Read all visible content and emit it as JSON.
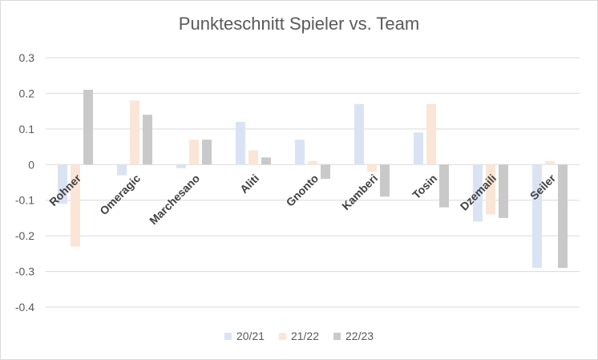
{
  "chart_data": {
    "type": "bar",
    "title": "Punkteschnitt Spieler vs. Team",
    "categories": [
      "Rohner",
      "Omeragic",
      "Marchesano",
      "Aliti",
      "Gnonto",
      "Kamberi",
      "Tosin",
      "Dzemaili",
      "Seiler"
    ],
    "series": [
      {
        "name": "20/21",
        "color": "#dae3f3",
        "values": [
          -0.11,
          -0.03,
          -0.01,
          0.12,
          0.07,
          0.17,
          0.09,
          -0.16,
          -0.29
        ]
      },
      {
        "name": "21/22",
        "color": "#fbe5d6",
        "values": [
          -0.23,
          0.18,
          0.07,
          0.04,
          0.01,
          -0.02,
          0.17,
          -0.14,
          0.01
        ]
      },
      {
        "name": "22/23",
        "color": "#c9c9c9",
        "values": [
          0.21,
          0.14,
          0.07,
          0.02,
          -0.04,
          -0.09,
          -0.12,
          -0.15,
          -0.29
        ]
      }
    ],
    "yticks": [
      "0.3",
      "0.2",
      "0.1",
      "0",
      "-0.1",
      "-0.2",
      "-0.3",
      "-0.4"
    ],
    "ylim": [
      -0.4,
      0.3
    ],
    "grid": true,
    "legend_position": "bottom"
  }
}
